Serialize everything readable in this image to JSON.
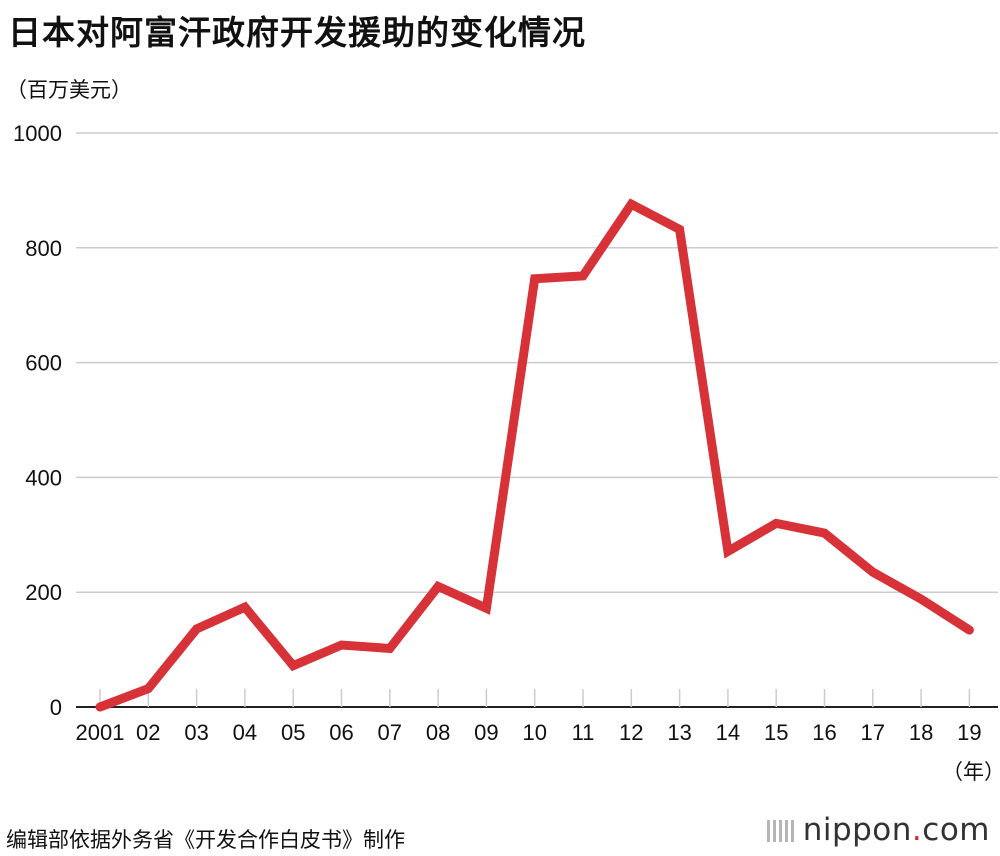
{
  "title": "日本对阿富汗政府开发援助的变化情况",
  "unit_label": "（百万美元）",
  "x_unit_label": "（年）",
  "source": "编辑部依据外务省《开发合作白皮书》制作",
  "brand": {
    "pre": "nippon",
    "dot": ".",
    "post": "com"
  },
  "colors": {
    "line": "#d63237",
    "grid": "#cccccc",
    "axis": "#222222"
  },
  "chart_data": {
    "type": "line",
    "categories": [
      "2001",
      "02",
      "03",
      "04",
      "05",
      "06",
      "07",
      "08",
      "09",
      "10",
      "11",
      "12",
      "13",
      "14",
      "15",
      "16",
      "17",
      "18",
      "19"
    ],
    "series": [
      {
        "values": [
          0,
          32,
          136,
          174,
          72,
          108,
          102,
          210,
          172,
          746,
          751,
          876,
          832,
          271,
          320,
          303,
          235,
          188,
          134
        ]
      }
    ],
    "y_ticks": [
      "0",
      "200",
      "400",
      "600",
      "800",
      "1000"
    ],
    "ylim": [
      0,
      1000
    ],
    "grid": true,
    "legend": "none"
  }
}
